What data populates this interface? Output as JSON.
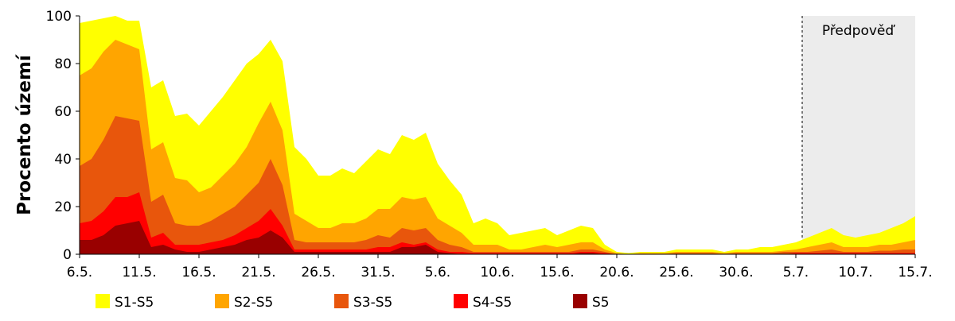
{
  "chart_data": {
    "type": "area",
    "y_label": "Procento území",
    "annotation": "Předpověď",
    "categories": [
      "6.5.",
      null,
      null,
      null,
      null,
      "11.5.",
      null,
      null,
      null,
      null,
      "16.5.",
      null,
      null,
      null,
      null,
      "21.5.",
      null,
      null,
      null,
      null,
      "26.5.",
      null,
      null,
      null,
      null,
      "31.5.",
      null,
      null,
      null,
      null,
      "5.6.",
      null,
      null,
      null,
      null,
      "10.6.",
      null,
      null,
      null,
      null,
      "15.6.",
      null,
      null,
      null,
      null,
      "20.6.",
      null,
      null,
      null,
      null,
      "25.6.",
      null,
      null,
      null,
      null,
      "30.6.",
      null,
      null,
      null,
      null,
      "5.7.",
      null,
      null,
      null,
      null,
      "10.7.",
      null,
      null,
      null,
      null,
      "15.7."
    ],
    "ylim": [
      0,
      100
    ],
    "yticks": [
      0,
      20,
      40,
      60,
      80,
      100
    ],
    "grid": false,
    "series": [
      {
        "name": "S1-S5",
        "color": "#ffff00",
        "values": [
          97,
          98,
          99,
          100,
          98,
          98,
          70,
          73,
          58,
          59,
          54,
          60,
          66,
          73,
          80,
          84,
          90,
          81,
          45,
          40,
          33,
          33,
          36,
          34,
          39,
          44,
          42,
          50,
          48,
          51,
          38,
          31,
          25,
          13,
          15,
          13,
          8,
          9,
          10,
          11,
          8,
          10,
          12,
          11,
          4,
          1,
          0.5,
          1,
          1,
          1,
          2,
          2,
          2,
          2,
          1,
          2,
          2,
          3,
          3,
          4,
          5,
          7,
          9,
          11,
          8,
          7,
          8,
          9,
          11,
          13,
          16
        ]
      },
      {
        "name": "S2-S5",
        "color": "#ffa500",
        "values": [
          75,
          78,
          85,
          90,
          88,
          86,
          44,
          47,
          32,
          31,
          26,
          28,
          33,
          38,
          45,
          55,
          64,
          52,
          17,
          14,
          11,
          11,
          13,
          13,
          15,
          19,
          19,
          24,
          23,
          24,
          15,
          12,
          9,
          4,
          4,
          4,
          2,
          2,
          3,
          4,
          3,
          4,
          5,
          5,
          2,
          0.5,
          0,
          0.5,
          0.5,
          0.5,
          1,
          1,
          1,
          1,
          0.5,
          1,
          1,
          1,
          1,
          1.5,
          2,
          3,
          4,
          5,
          3,
          3,
          3,
          4,
          4,
          5,
          6
        ]
      },
      {
        "name": "S3-S5",
        "color": "#e8560c",
        "values": [
          37,
          40,
          48,
          58,
          57,
          56,
          22,
          25,
          13,
          12,
          12,
          14,
          17,
          20,
          25,
          30,
          40,
          29,
          6,
          5,
          5,
          5,
          5,
          5,
          6,
          8,
          7,
          11,
          10,
          11,
          6,
          4,
          3,
          1,
          1,
          1,
          1,
          1,
          1,
          1,
          1,
          1,
          2,
          2,
          1,
          0,
          0,
          0,
          0,
          0,
          0.5,
          0.5,
          0.5,
          0.5,
          0,
          0.5,
          0.5,
          0.5,
          0.5,
          1,
          1,
          1,
          1.5,
          2,
          1,
          1,
          1,
          1.5,
          1.5,
          2,
          2
        ]
      },
      {
        "name": "S4-S5",
        "color": "#ff0000",
        "values": [
          13,
          14,
          18,
          24,
          24,
          26,
          7,
          9,
          4,
          4,
          4,
          5,
          6,
          8,
          11,
          14,
          19,
          12,
          2,
          2,
          2,
          2,
          2,
          2,
          2,
          3,
          3,
          5,
          4,
          5,
          2,
          1,
          1,
          0.5,
          0.5,
          0.5,
          0.5,
          0.5,
          0.5,
          0.5,
          0.5,
          0.5,
          1,
          1,
          0.5,
          0,
          0,
          0,
          0,
          0,
          0,
          0,
          0,
          0,
          0,
          0,
          0,
          0,
          0,
          0,
          0.5,
          0.5,
          0.5,
          0.5,
          0.5,
          0.5,
          0.5,
          0.5,
          0.5,
          0.5,
          0.5
        ]
      },
      {
        "name": "S5",
        "color": "#990000",
        "values": [
          6,
          6,
          8,
          12,
          13,
          14,
          3,
          4,
          2,
          1,
          1,
          2,
          3,
          4,
          6,
          7,
          10,
          7,
          1,
          1,
          1,
          1,
          1,
          1,
          1,
          1,
          1,
          3,
          3,
          4,
          1,
          0.5,
          0,
          0,
          0,
          0,
          0,
          0,
          0,
          0,
          0,
          0,
          0.5,
          0.5,
          0,
          0,
          0,
          0,
          0,
          0,
          0,
          0,
          0,
          0,
          0,
          0,
          0,
          0,
          0,
          0,
          0,
          0,
          0,
          0,
          0,
          0,
          0,
          0,
          0,
          0,
          0
        ]
      }
    ]
  }
}
